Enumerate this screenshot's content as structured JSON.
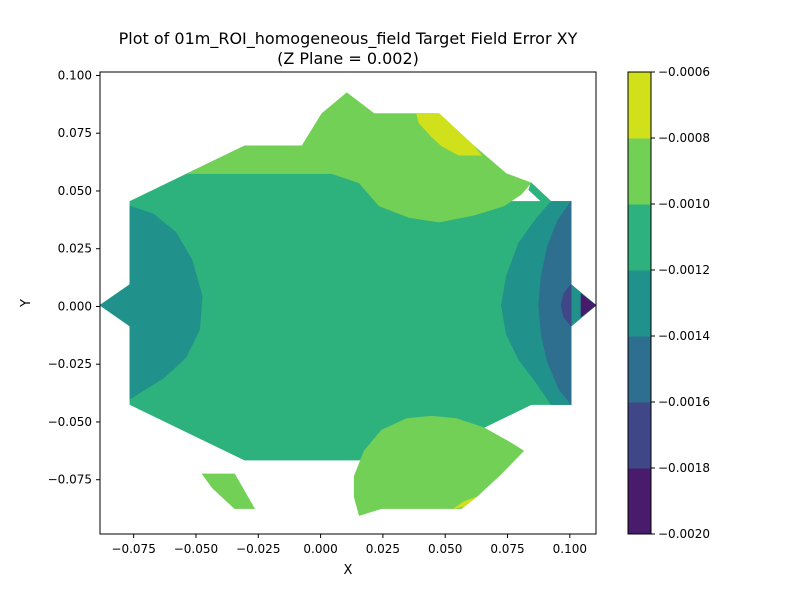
{
  "chart_data": {
    "type": "contourf",
    "title": "Plot of 01m_ROI_homogeneous_field Target Field Error XY",
    "subtitle": "(Z Plane = 0.002)",
    "xlabel": "X",
    "ylabel": "Y",
    "xlim": [
      -0.0885,
      0.1105
    ],
    "ylim": [
      -0.0985,
      0.1015
    ],
    "x_ticks": [
      -0.075,
      -0.05,
      -0.025,
      0.0,
      0.025,
      0.05,
      0.075,
      0.1
    ],
    "x_tick_labels": [
      "−0.075",
      "−0.050",
      "−0.025",
      "0.000",
      "0.025",
      "0.050",
      "0.075",
      "0.100"
    ],
    "y_ticks": [
      -0.075,
      -0.05,
      -0.025,
      0.0,
      0.025,
      0.05,
      0.075,
      0.1
    ],
    "y_tick_labels": [
      "−0.075",
      "−0.050",
      "−0.025",
      "0.000",
      "0.025",
      "0.050",
      "0.075",
      "0.100"
    ],
    "grid": false,
    "colorbar": {
      "levels": [
        -0.002,
        -0.0018,
        -0.0016,
        -0.0014,
        -0.0012,
        -0.001,
        -0.0008,
        -0.0006
      ],
      "tick_labels": [
        "−0.0020",
        "−0.0018",
        "−0.0016",
        "−0.0014",
        "−0.0012",
        "−0.0010",
        "−0.0008",
        "−0.0006"
      ],
      "colors": [
        "#440154",
        "#443983",
        "#31688e",
        "#21918c",
        "#35b779",
        "#90d743",
        "#fde725"
      ],
      "band_colors": [
        "#481b6d",
        "#3f4788",
        "#2e6e8e",
        "#21918c",
        "#2db27d",
        "#73d056",
        "#d0e11c"
      ]
    },
    "regions": [
      {
        "name": "domain",
        "band": 4,
        "points": [
          [
            -0.0765,
            0.0455
          ],
          [
            -0.0535,
            0.0575
          ],
          [
            -0.0535,
            0.0575
          ],
          [
            -0.0305,
            0.0695
          ],
          [
            -0.0305,
            0.0695
          ],
          [
            -0.0075,
            0.0695
          ],
          [
            -0.0075,
            0.0695
          ],
          [
            0.0155,
            0.0575
          ],
          [
            0.0155,
            0.0575
          ],
          [
            0.0385,
            0.0575
          ],
          [
            0.0385,
            0.0575
          ],
          [
            0.0615,
            0.0455
          ],
          [
            0.0615,
            0.0455
          ],
          [
            0.0845,
            0.0455
          ],
          [
            0.0845,
            0.0455
          ],
          [
            0.0925,
            0.0455
          ],
          [
            0.1005,
            0.0455
          ],
          [
            0.1005,
            0.0225
          ],
          [
            0.1005,
            0.0005
          ],
          [
            0.1105,
            0.0005
          ],
          [
            0.1005,
            -0.0085
          ],
          [
            0.1005,
            -0.0425
          ],
          [
            0.0925,
            -0.0425
          ],
          [
            0.0845,
            -0.0425
          ],
          [
            0.0615,
            -0.0545
          ],
          [
            0.0385,
            -0.0545
          ],
          [
            0.0155,
            -0.0665
          ],
          [
            -0.0075,
            -0.0665
          ],
          [
            -0.0305,
            -0.0665
          ],
          [
            -0.0535,
            -0.0545
          ],
          [
            -0.0765,
            -0.0425
          ],
          [
            -0.0765,
            -0.0085
          ],
          [
            -0.0885,
            0.0005
          ],
          [
            -0.0765,
            0.0095
          ],
          [
            -0.0765,
            0.0455
          ]
        ]
      },
      {
        "name": "left-lobe",
        "band": 3,
        "points": [
          [
            -0.0765,
            0.0435
          ],
          [
            -0.067,
            0.04
          ],
          [
            -0.058,
            0.032
          ],
          [
            -0.0515,
            0.02
          ],
          [
            -0.0475,
            0.0045
          ],
          [
            -0.0485,
            -0.01
          ],
          [
            -0.054,
            -0.022
          ],
          [
            -0.063,
            -0.031
          ],
          [
            -0.0765,
            -0.04
          ],
          [
            -0.0765,
            -0.0085
          ],
          [
            -0.0885,
            0.0005
          ],
          [
            -0.0765,
            0.0095
          ]
        ]
      },
      {
        "name": "right-lobe",
        "band": 3,
        "points": [
          [
            0.0925,
            0.0455
          ],
          [
            0.0865,
            0.038
          ],
          [
            0.0795,
            0.0275
          ],
          [
            0.0745,
            0.013
          ],
          [
            0.0725,
            0.0005
          ],
          [
            0.0745,
            -0.012
          ],
          [
            0.0795,
            -0.023
          ],
          [
            0.0865,
            -0.033
          ],
          [
            0.0925,
            -0.0425
          ],
          [
            0.1005,
            -0.0425
          ],
          [
            0.1005,
            -0.0085
          ],
          [
            0.1105,
            0.0005
          ],
          [
            0.1005,
            0.0095
          ],
          [
            0.1005,
            0.0455
          ]
        ]
      },
      {
        "name": "right-inner",
        "band": 2,
        "points": [
          [
            0.1005,
            0.0455
          ],
          [
            0.095,
            0.037
          ],
          [
            0.091,
            0.026
          ],
          [
            0.0885,
            0.013
          ],
          [
            0.0875,
            0.0005
          ],
          [
            0.0885,
            -0.012
          ],
          [
            0.091,
            -0.024
          ],
          [
            0.0955,
            -0.0355
          ],
          [
            0.1005,
            -0.0425
          ]
        ]
      },
      {
        "name": "right-tip",
        "band": 1,
        "points": [
          [
            0.1005,
            0.0095
          ],
          [
            0.0975,
            0.0055
          ],
          [
            0.0965,
            0.0005
          ],
          [
            0.0975,
            -0.0045
          ],
          [
            0.1005,
            -0.0085
          ]
        ]
      },
      {
        "name": "right-tip-core",
        "band": 0,
        "points": [
          [
            0.1045,
            0.0055
          ],
          [
            0.1105,
            0.0005
          ],
          [
            0.1045,
            -0.0045
          ]
        ]
      },
      {
        "name": "top-region",
        "band": 5,
        "points": [
          [
            -0.0535,
            0.0575
          ],
          [
            -0.0305,
            0.0695
          ],
          [
            -0.0075,
            0.0695
          ],
          [
            0.0005,
            0.0835
          ],
          [
            0.0105,
            0.0925
          ],
          [
            0.0215,
            0.0835
          ],
          [
            0.0375,
            0.0835
          ],
          [
            0.0475,
            0.0835
          ],
          [
            0.0615,
            0.0695
          ],
          [
            0.0745,
            0.0575
          ],
          [
            0.0845,
            0.0535
          ],
          [
            0.0805,
            0.0485
          ],
          [
            0.0735,
            0.0435
          ],
          [
            0.0615,
            0.0395
          ],
          [
            0.0475,
            0.0365
          ],
          [
            0.0355,
            0.0385
          ],
          [
            0.0235,
            0.0435
          ],
          [
            0.0155,
            0.0535
          ],
          [
            0.0045,
            0.0575
          ],
          [
            -0.0305,
            0.0575
          ]
        ]
      },
      {
        "name": "top-tip",
        "band": 6,
        "points": [
          [
            0.0385,
            0.0835
          ],
          [
            0.0475,
            0.0835
          ],
          [
            0.0615,
            0.0695
          ],
          [
            0.0645,
            0.0655
          ],
          [
            0.0555,
            0.0655
          ],
          [
            0.0485,
            0.0695
          ],
          [
            0.0445,
            0.0735
          ],
          [
            0.0395,
            0.0795
          ]
        ]
      },
      {
        "name": "bottom-region",
        "band": 5,
        "points": [
          [
            0.0155,
            -0.0905
          ],
          [
            0.0135,
            -0.0825
          ],
          [
            0.0135,
            -0.0735
          ],
          [
            0.0175,
            -0.0625
          ],
          [
            0.0245,
            -0.0535
          ],
          [
            0.0345,
            -0.0485
          ],
          [
            0.0445,
            -0.0475
          ],
          [
            0.0545,
            -0.0485
          ],
          [
            0.0655,
            -0.0525
          ],
          [
            0.0755,
            -0.0585
          ],
          [
            0.0815,
            -0.0625
          ],
          [
            0.0725,
            -0.0725
          ],
          [
            0.0625,
            -0.0825
          ],
          [
            0.0565,
            -0.0875
          ],
          [
            0.0475,
            -0.0875
          ],
          [
            0.0385,
            -0.0875
          ],
          [
            0.0245,
            -0.0875
          ]
        ]
      },
      {
        "name": "bottom-tip",
        "band": 6,
        "points": [
          [
            0.0535,
            -0.0875
          ],
          [
            0.0575,
            -0.0865
          ],
          [
            0.0625,
            -0.0825
          ],
          [
            0.0575,
            -0.0845
          ]
        ]
      },
      {
        "name": "bottom-left-region",
        "band": 5,
        "points": [
          [
            -0.0475,
            -0.0725
          ],
          [
            -0.0345,
            -0.0725
          ],
          [
            -0.0265,
            -0.0875
          ],
          [
            -0.0345,
            -0.0875
          ],
          [
            -0.0385,
            -0.0835
          ],
          [
            -0.0435,
            -0.0785
          ]
        ]
      },
      {
        "name": "right-edge-upper",
        "band": 4,
        "points": [
          [
            0.0845,
            0.0535
          ],
          [
            0.0925,
            0.0455
          ],
          [
            0.0885,
            0.0455
          ],
          [
            0.0835,
            0.0505
          ]
        ]
      }
    ]
  }
}
